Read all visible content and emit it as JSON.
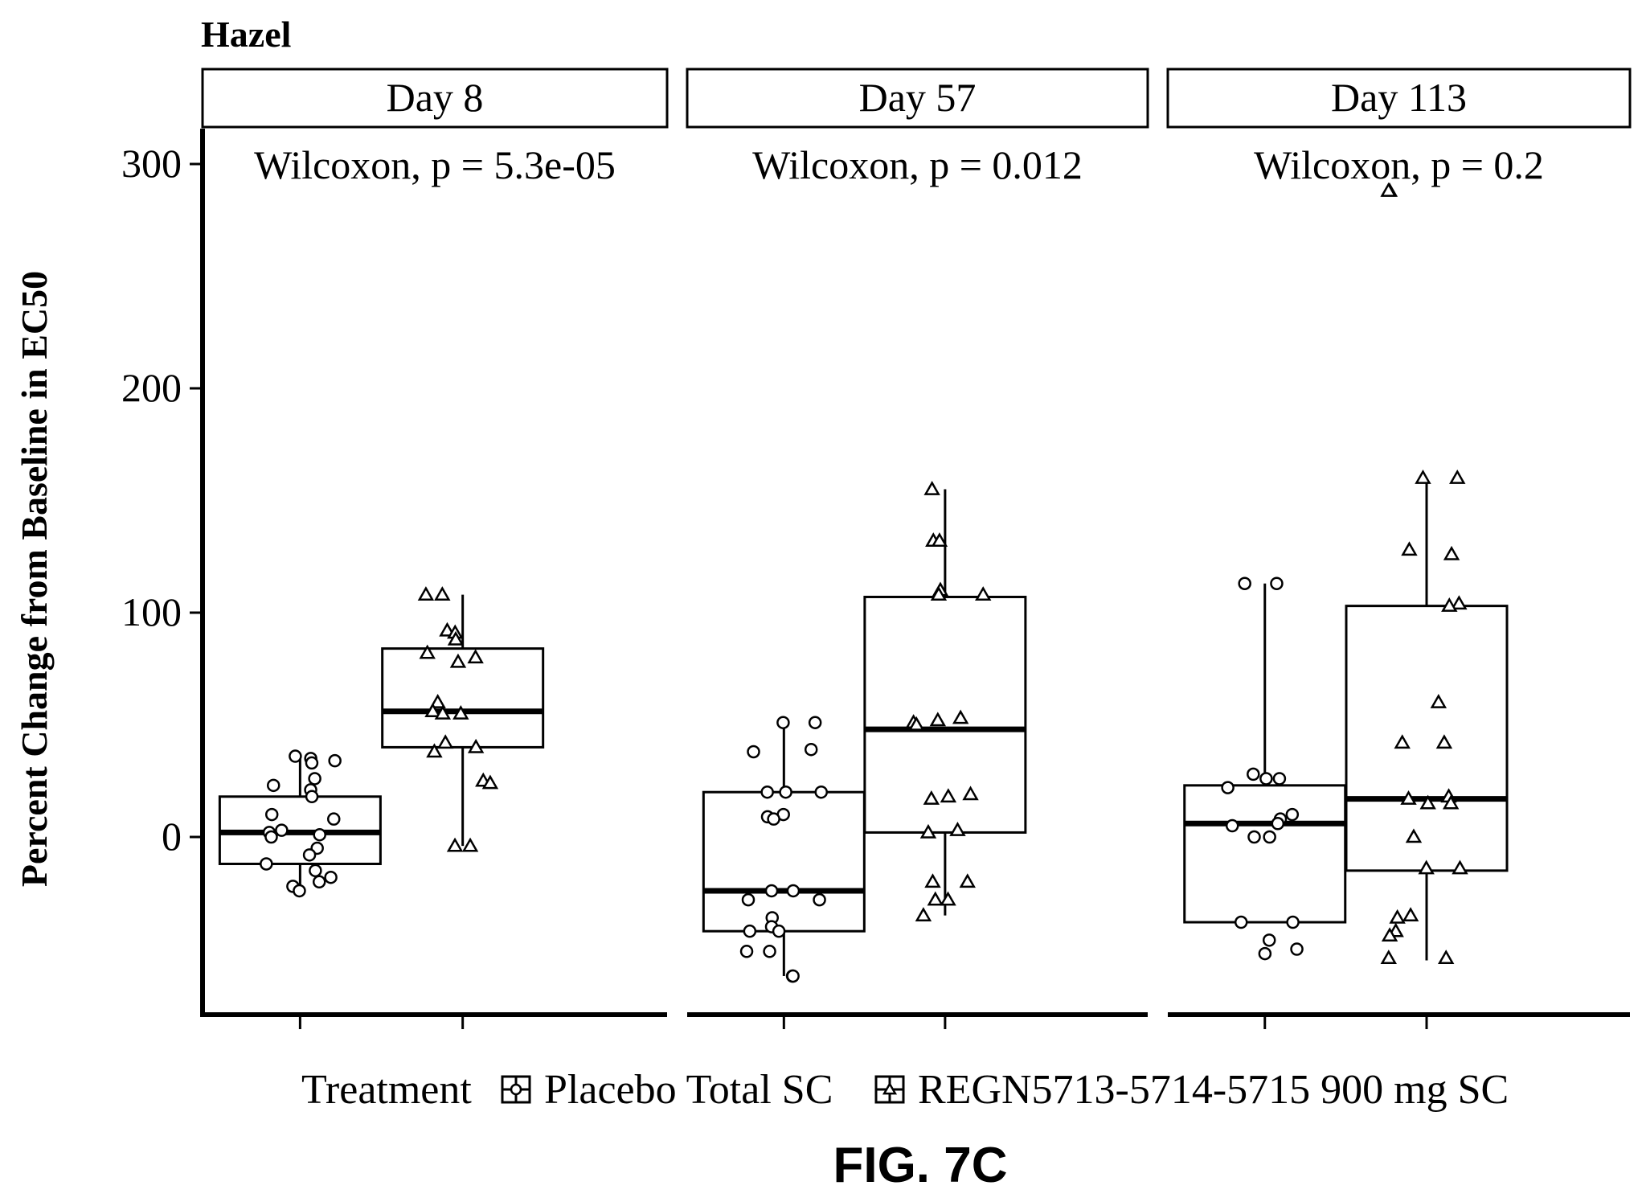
{
  "chart_data": {
    "type": "box",
    "title": "Hazel",
    "ylabel": "Percent Change from Baseline in EC50",
    "ylim": [
      -80,
      320
    ],
    "yticks": [
      0,
      100,
      200,
      300
    ],
    "grid": false,
    "legend": {
      "title": "Treatment",
      "placement": "bottom",
      "entries": [
        {
          "name": "Placebo Total SC",
          "marker": "circle"
        },
        {
          "name": "REGN5713-5714-5715 900 mg SC",
          "marker": "triangle"
        }
      ]
    },
    "figure_label": "FIG. 7C",
    "panels": [
      {
        "label": "Day 8",
        "annotation": "Wilcoxon, p = 5.3e-05",
        "groups": [
          {
            "series": "Placebo Total SC",
            "box": {
              "whisker_low": -24,
              "q1": -12,
              "median": 2,
              "q3": 18,
              "whisker_high": 35
            },
            "points": [
              36,
              35,
              34,
              33,
              26,
              23,
              21,
              18,
              10,
              8,
              3,
              2,
              1,
              0,
              -5,
              -8,
              -12,
              -15,
              -18,
              -20,
              -22,
              -24
            ]
          },
          {
            "series": "REGN5713-5714-5715 900 mg SC",
            "box": {
              "whisker_low": -4,
              "q1": 40,
              "median": 56,
              "q3": 84,
              "whisker_high": 108
            },
            "points": [
              108,
              108,
              92,
              91,
              88,
              82,
              80,
              78,
              60,
              56,
              55,
              55,
              42,
              40,
              38,
              25,
              24,
              -4,
              -4
            ]
          }
        ]
      },
      {
        "label": "Day 57",
        "annotation": "Wilcoxon, p = 0.012",
        "groups": [
          {
            "series": "Placebo Total SC",
            "box": {
              "whisker_low": -62,
              "q1": -42,
              "median": -24,
              "q3": 20,
              "whisker_high": 51
            },
            "points": [
              51,
              51,
              39,
              38,
              20,
              20,
              20,
              10,
              9,
              8,
              -24,
              -24,
              -28,
              -28,
              -36,
              -40,
              -42,
              -42,
              -51,
              -51,
              -62,
              -62
            ]
          },
          {
            "series": "REGN5713-5714-5715 900 mg SC",
            "box": {
              "whisker_low": -35,
              "q1": 2,
              "median": 48,
              "q3": 107,
              "whisker_high": 155
            },
            "points": [
              155,
              132,
              132,
              110,
              108,
              108,
              53,
              52,
              51,
              50,
              19,
              18,
              17,
              3,
              2,
              -20,
              -20,
              -28,
              -28,
              -35
            ]
          }
        ]
      },
      {
        "label": "Day 113",
        "annotation": "Wilcoxon, p = 0.2",
        "groups": [
          {
            "series": "Placebo Total SC",
            "box": {
              "whisker_low": -38,
              "q1": -38,
              "median": 6,
              "q3": 23,
              "whisker_high": 113
            },
            "points": [
              113,
              113,
              28,
              26,
              26,
              22,
              10,
              8,
              6,
              5,
              0,
              0,
              -38,
              -38,
              -46,
              -50,
              -52
            ]
          },
          {
            "series": "REGN5713-5714-5715 900 mg SC",
            "box": {
              "whisker_low": -55,
              "q1": -15,
              "median": 17,
              "q3": 103,
              "whisker_high": 160
            },
            "points": [
              288,
              288,
              160,
              160,
              128,
              126,
              104,
              103,
              60,
              42,
              42,
              18,
              17,
              15,
              15,
              0,
              -14,
              -14,
              -35,
              -36,
              -42,
              -44,
              -54,
              -54
            ]
          }
        ]
      }
    ]
  }
}
